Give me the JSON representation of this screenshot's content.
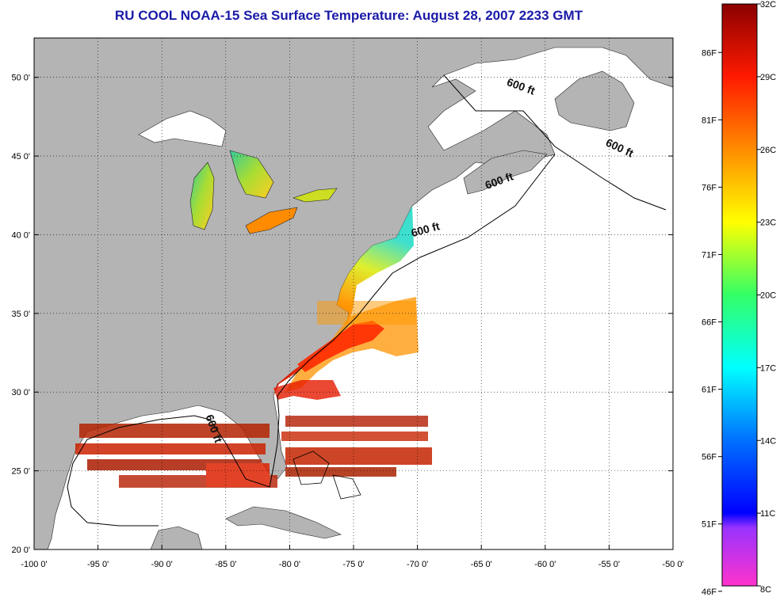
{
  "title": "RU COOL  NOAA-15  Sea Surface Temperature:  August 28, 2007 2233 GMT",
  "map": {
    "lon_range": [
      -100,
      -50
    ],
    "lat_range": [
      20,
      52.5
    ],
    "lon_ticks": [
      {
        "value": -100,
        "label": "-100 0'"
      },
      {
        "value": -95,
        "label": "-95 0'"
      },
      {
        "value": -90,
        "label": "-90 0'"
      },
      {
        "value": -85,
        "label": "-85 0'"
      },
      {
        "value": -80,
        "label": "-80 0'"
      },
      {
        "value": -75,
        "label": "-75 0'"
      },
      {
        "value": -70,
        "label": "-70 0'"
      },
      {
        "value": -65,
        "label": "-65 0'"
      },
      {
        "value": -60,
        "label": "-60 0'"
      },
      {
        "value": -55,
        "label": "-55 0'"
      },
      {
        "value": -50,
        "label": "-50 0'"
      }
    ],
    "lat_ticks": [
      {
        "value": 20,
        "label": "20 0'"
      },
      {
        "value": 25,
        "label": "25 0'"
      },
      {
        "value": 30,
        "label": "30 0'"
      },
      {
        "value": 35,
        "label": "35 0'"
      },
      {
        "value": 40,
        "label": "40 0'"
      },
      {
        "value": 45,
        "label": "45 0'"
      },
      {
        "value": 50,
        "label": "50 0'"
      }
    ],
    "grid": "dotted",
    "land_color": "#b4b4b4",
    "ocean_color": "#ffffff",
    "isobath_labels": [
      {
        "text": "600 ft",
        "lon": -62,
        "lat": 49.2,
        "rotate": 20
      },
      {
        "text": "600 ft",
        "lon": -54.3,
        "lat": 45.3,
        "rotate": 25
      },
      {
        "text": "600 ft",
        "lon": -63.5,
        "lat": 43.2,
        "rotate": -20
      },
      {
        "text": "600 ft",
        "lon": -69.3,
        "lat": 40.1,
        "rotate": -15
      },
      {
        "text": "600 ft",
        "lon": -86.2,
        "lat": 27.6,
        "rotate": 70
      }
    ]
  },
  "colorbar": {
    "celsius_labels": [
      "32C",
      "29C",
      "26C",
      "23C",
      "20C",
      "17C",
      "14C",
      "11C",
      "8C"
    ],
    "fahrenheit_labels": [
      "86F",
      "81F",
      "76F",
      "71F",
      "66F",
      "61F",
      "56F",
      "51F",
      "46F"
    ],
    "range_c": [
      8,
      32
    ],
    "colors": {
      "c32": "#8b0000",
      "c29": "#ff1a00",
      "c26": "#ff8c00",
      "c23": "#ffff00",
      "c20": "#33ff66",
      "c17": "#00ffff",
      "c14": "#0070ff",
      "c11": "#0000ff",
      "c8": "#ff33cc"
    }
  }
}
